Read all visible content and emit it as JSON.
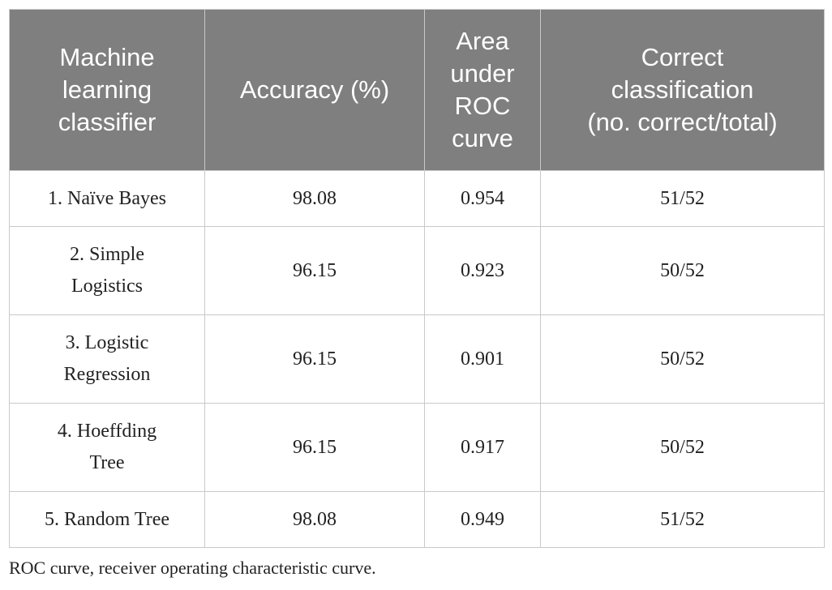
{
  "table": {
    "header": [
      [
        "Machine",
        "learning",
        "classifier"
      ],
      [
        "Accuracy (%)"
      ],
      [
        "Area",
        "under",
        "ROC",
        "curve"
      ],
      [
        "Correct",
        "classification",
        "(no. correct/total)"
      ]
    ],
    "rows": [
      [
        [
          "1. Naïve Bayes"
        ],
        [
          "98.08"
        ],
        [
          "0.954"
        ],
        [
          "51/52"
        ]
      ],
      [
        [
          "2. Simple",
          "Logistics"
        ],
        [
          "96.15"
        ],
        [
          "0.923"
        ],
        [
          "50/52"
        ]
      ],
      [
        [
          "3. Logistic",
          "Regression"
        ],
        [
          "96.15"
        ],
        [
          "0.901"
        ],
        [
          "50/52"
        ]
      ],
      [
        [
          "4. Hoeffding",
          "Tree"
        ],
        [
          "96.15"
        ],
        [
          "0.917"
        ],
        [
          "50/52"
        ]
      ],
      [
        [
          "5. Random Tree"
        ],
        [
          "98.08"
        ],
        [
          "0.949"
        ],
        [
          "51/52"
        ]
      ]
    ]
  },
  "footnote": "ROC curve, receiver operating characteristic curve."
}
